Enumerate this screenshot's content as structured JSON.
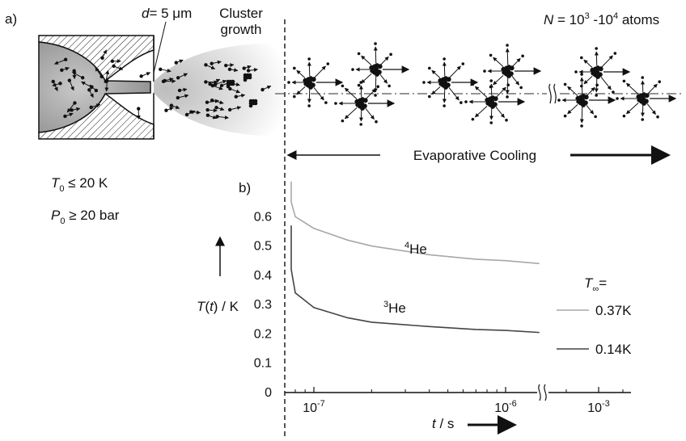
{
  "panel_a": {
    "label": "a)",
    "nozzle": {
      "d_label": "d",
      "d_value": "= 5 μm"
    },
    "cluster_growth": [
      "Cluster",
      "growth"
    ],
    "N_label": {
      "var": "N",
      "text": " = 10",
      "exp1": "3",
      "mid": " -10",
      "exp2": "4",
      "tail": " atoms"
    },
    "conditions": {
      "T0": {
        "var": "T",
        "sub": "0",
        "rel": " ≤ 20 K"
      },
      "P0": {
        "var": "P",
        "sub": "0",
        "rel": " ≥ 20 bar"
      }
    },
    "evaporative_cooling": "Evaporative Cooling"
  },
  "panel_b": {
    "label": "b)",
    "ylabel": {
      "var": "T",
      "paren": "(",
      "var2": "t",
      "rest": ") / K"
    },
    "xlabel": {
      "var": "t",
      "rest": " / s"
    },
    "legend_title": {
      "var": "T",
      "sub": "∞",
      "rest": "="
    }
  },
  "chart_data": {
    "type": "line",
    "title": "",
    "xlabel": "t / s",
    "ylabel": "T(t) / K",
    "x_scale": "log (broken axis)",
    "x_ticks": [
      {
        "base": "10",
        "exp": "-7"
      },
      {
        "base": "10",
        "exp": "-6"
      },
      {
        "base": "10",
        "exp": "-3"
      }
    ],
    "y_ticks": [
      "0",
      "0.1",
      "0.2",
      "0.3",
      "0.4",
      "0.5",
      "0.6"
    ],
    "ylim": [
      0,
      0.7
    ],
    "series": [
      {
        "name": "4He",
        "label_sup": "4",
        "label_base": "He",
        "legend": "0.37K",
        "color": "#a8a8a8",
        "points": [
          [
            7e-08,
            0.72
          ],
          [
            7.3e-08,
            0.65
          ],
          [
            8e-08,
            0.6
          ],
          [
            1e-07,
            0.56
          ],
          [
            1.5e-07,
            0.52
          ],
          [
            2e-07,
            0.5
          ],
          [
            4e-07,
            0.47
          ],
          [
            7e-07,
            0.455
          ],
          [
            1e-06,
            0.45
          ],
          [
            1.5e-06,
            0.44
          ]
        ]
      },
      {
        "name": "3He",
        "label_sup": "3",
        "label_base": "He",
        "legend": "0.14K",
        "color": "#444444",
        "points": [
          [
            7e-08,
            0.57
          ],
          [
            7.3e-08,
            0.42
          ],
          [
            8e-08,
            0.34
          ],
          [
            1e-07,
            0.29
          ],
          [
            1.5e-07,
            0.255
          ],
          [
            2e-07,
            0.24
          ],
          [
            4e-07,
            0.225
          ],
          [
            7e-07,
            0.215
          ],
          [
            1e-06,
            0.212
          ],
          [
            1.5e-06,
            0.205
          ]
        ]
      }
    ],
    "legend_placement": "right"
  }
}
